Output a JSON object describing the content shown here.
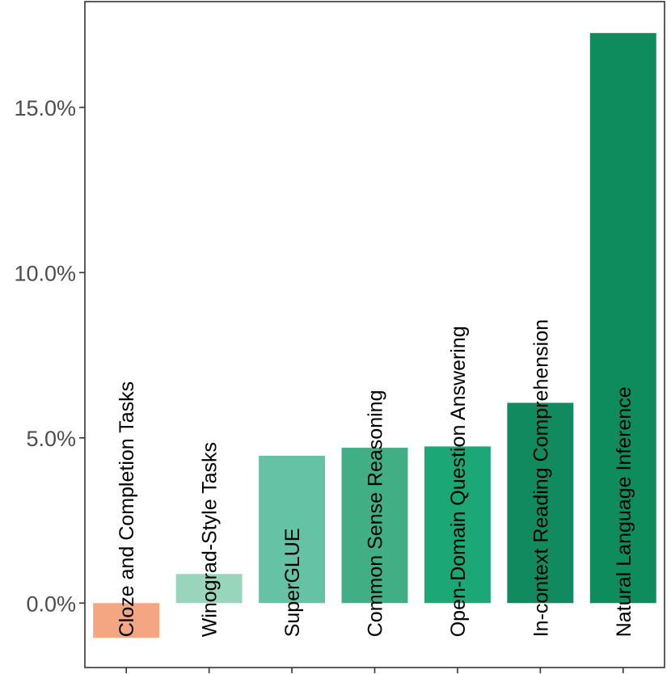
{
  "chart_data": {
    "type": "bar",
    "title": "",
    "xlabel": "",
    "ylabel": "",
    "categories": [
      "Cloze and Completion Tasks",
      "Winograd-Style Tasks",
      "SuperGLUE",
      "Common Sense Reasoning",
      "Open-Domain Question Answering",
      "In-context Reading Comprehension",
      "Natural Language Inference"
    ],
    "values": [
      -1.05,
      0.88,
      4.46,
      4.7,
      4.74,
      6.06,
      17.25
    ],
    "colors": [
      "#f4a582",
      "#99d5bd",
      "#66c2a4",
      "#41ae86",
      "#1ba776",
      "#118a5f",
      "#0f8c5e"
    ],
    "ylim": [
      -1.95,
      18.2
    ],
    "yticks": [
      0,
      5,
      10,
      15
    ],
    "ytick_labels": [
      "0.0%",
      "5.0%",
      "10.0%",
      "15.0%"
    ],
    "grid": false,
    "legend": "none"
  }
}
